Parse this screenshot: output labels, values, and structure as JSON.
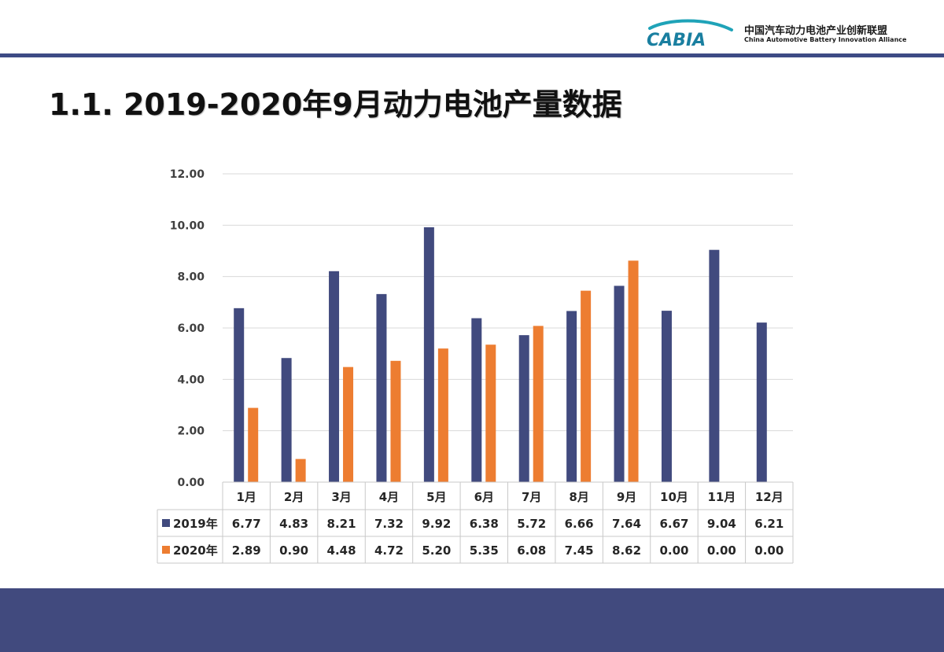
{
  "header": {
    "logo_text": "CABIA",
    "org_name_cn": "中国汽车动力电池产业创新联盟",
    "org_name_en": "China Automotive Battery Innovation Alliance"
  },
  "page_title": "1.1. 2019-2020年9月动力电池产量数据",
  "chart_data": {
    "type": "bar",
    "title": "",
    "xlabel": "",
    "ylabel": "",
    "ylim": [
      0,
      12
    ],
    "yticks": [
      "0.00",
      "2.00",
      "4.00",
      "6.00",
      "8.00",
      "10.00",
      "12.00"
    ],
    "grid": true,
    "legend": "data-table",
    "categories": [
      "1月",
      "2月",
      "3月",
      "4月",
      "5月",
      "6月",
      "7月",
      "8月",
      "9月",
      "10月",
      "11月",
      "12月"
    ],
    "series": [
      {
        "name": "2019年",
        "color": "#414a7e",
        "values": [
          6.77,
          4.83,
          8.21,
          7.32,
          9.92,
          6.38,
          5.72,
          6.66,
          7.64,
          6.67,
          9.04,
          6.21
        ],
        "labels": [
          "6.77",
          "4.83",
          "8.21",
          "7.32",
          "9.92",
          "6.38",
          "5.72",
          "6.66",
          "7.64",
          "6.67",
          "9.04",
          "6.21"
        ]
      },
      {
        "name": "2020年",
        "color": "#ed7d31",
        "values": [
          2.89,
          0.9,
          4.48,
          4.72,
          5.2,
          5.35,
          6.08,
          7.45,
          8.62,
          0.0,
          0.0,
          0.0
        ],
        "labels": [
          "2.89",
          "0.90",
          "4.48",
          "4.72",
          "5.20",
          "5.35",
          "6.08",
          "7.45",
          "8.62",
          "0.00",
          "0.00",
          "0.00"
        ]
      }
    ]
  }
}
